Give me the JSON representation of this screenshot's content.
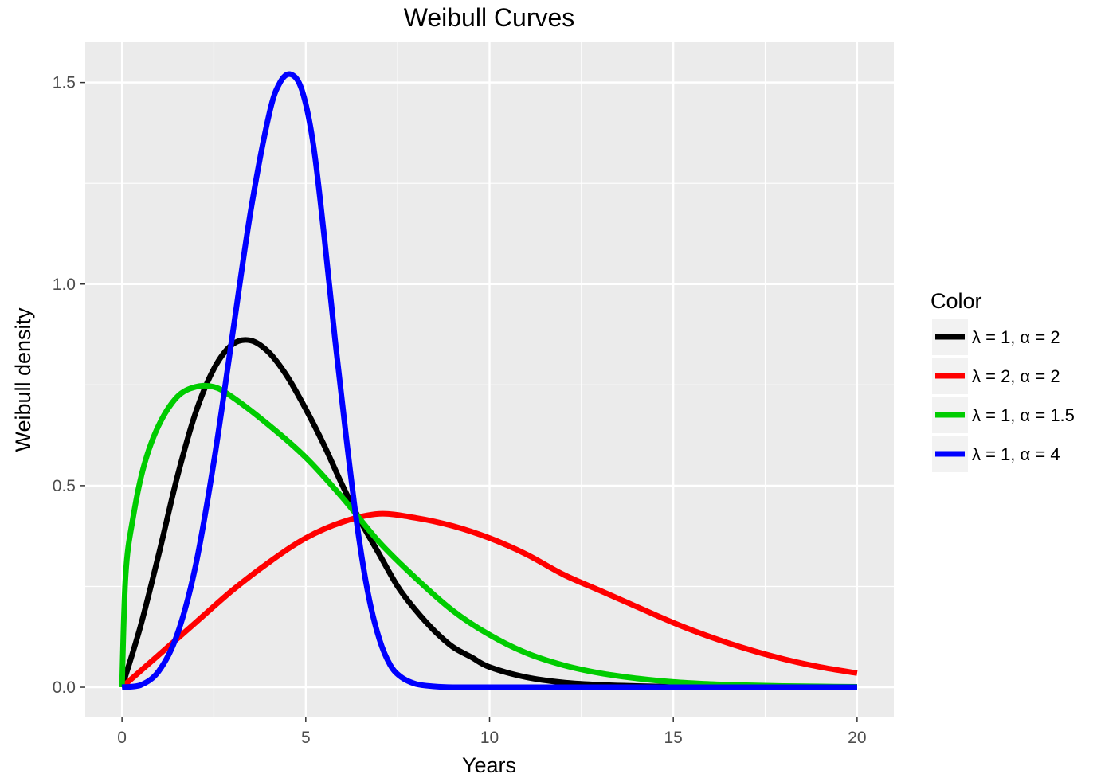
{
  "chart_data": {
    "type": "line",
    "title": "Weibull Curves",
    "xlabel": "Years",
    "ylabel": "Weibull density",
    "xlim": [
      -1,
      21
    ],
    "ylim": [
      -0.075,
      1.6
    ],
    "xticks": [
      0,
      5,
      10,
      15,
      20
    ],
    "xtick_labels": [
      "0",
      "5",
      "10",
      "15",
      "20"
    ],
    "yticks": [
      0.0,
      0.5,
      1.0,
      1.5
    ],
    "ytick_labels": [
      "0.0",
      "0.5",
      "1.0",
      "1.5"
    ],
    "grid": true,
    "background": "#ebebeb",
    "legend": {
      "title": "Color",
      "placement": "right",
      "entries": [
        "λ = 1, α = 2",
        "λ = 2, α = 2",
        "λ = 1, α = 1.5",
        "λ = 1, α = 4"
      ]
    },
    "series": [
      {
        "name": "λ = 1, α = 2",
        "color": "#000000",
        "x": [
          0,
          0.5,
          1,
          1.5,
          2,
          2.5,
          3,
          3.5,
          4,
          4.5,
          5,
          5.5,
          6,
          6.5,
          7,
          7.5,
          8,
          8.5,
          9,
          9.5,
          10,
          11,
          12,
          13,
          14,
          15,
          16,
          17,
          18,
          19,
          20
        ],
        "y": [
          0,
          0.15,
          0.33,
          0.52,
          0.68,
          0.79,
          0.85,
          0.86,
          0.83,
          0.77,
          0.69,
          0.6,
          0.5,
          0.41,
          0.33,
          0.25,
          0.19,
          0.14,
          0.1,
          0.075,
          0.05,
          0.025,
          0.012,
          0.006,
          0.003,
          0.001,
          0.0005,
          0.0002,
          0.0001,
          0,
          0
        ]
      },
      {
        "name": "λ = 2, α = 2",
        "color": "#ff0000",
        "x": [
          0,
          1,
          2,
          3,
          4,
          5,
          6,
          7,
          8,
          9,
          10,
          11,
          12,
          13,
          14,
          15,
          16,
          17,
          18,
          19,
          20
        ],
        "y": [
          0,
          0.08,
          0.16,
          0.24,
          0.31,
          0.37,
          0.41,
          0.43,
          0.42,
          0.4,
          0.37,
          0.33,
          0.28,
          0.24,
          0.2,
          0.16,
          0.125,
          0.095,
          0.07,
          0.05,
          0.035
        ]
      },
      {
        "name": "λ = 1, α = 1.5",
        "color": "#00cc00",
        "x": [
          0,
          0.1,
          0.3,
          0.6,
          1,
          1.5,
          2,
          2.5,
          3,
          4,
          5,
          6,
          7,
          8,
          9,
          10,
          11,
          12,
          13,
          14,
          15,
          16,
          17,
          18,
          19,
          20
        ],
        "y": [
          0,
          0.28,
          0.42,
          0.55,
          0.65,
          0.72,
          0.745,
          0.745,
          0.72,
          0.65,
          0.57,
          0.47,
          0.36,
          0.27,
          0.19,
          0.13,
          0.085,
          0.055,
          0.035,
          0.022,
          0.013,
          0.008,
          0.005,
          0.003,
          0.002,
          0.001
        ]
      },
      {
        "name": "λ = 1, α = 4",
        "color": "#0000ff",
        "x": [
          0,
          0.5,
          1,
          1.5,
          2,
          2.5,
          3,
          3.5,
          4,
          4.3,
          4.6,
          4.9,
          5.2,
          5.5,
          5.8,
          6.1,
          6.4,
          6.7,
          7,
          7.3,
          7.6,
          8,
          8.5,
          9,
          10,
          12,
          15,
          20
        ],
        "y": [
          0,
          0.005,
          0.04,
          0.13,
          0.3,
          0.56,
          0.87,
          1.18,
          1.42,
          1.5,
          1.52,
          1.48,
          1.35,
          1.12,
          0.86,
          0.62,
          0.4,
          0.23,
          0.12,
          0.055,
          0.025,
          0.008,
          0.002,
          0,
          0,
          0,
          0,
          0
        ]
      }
    ]
  }
}
